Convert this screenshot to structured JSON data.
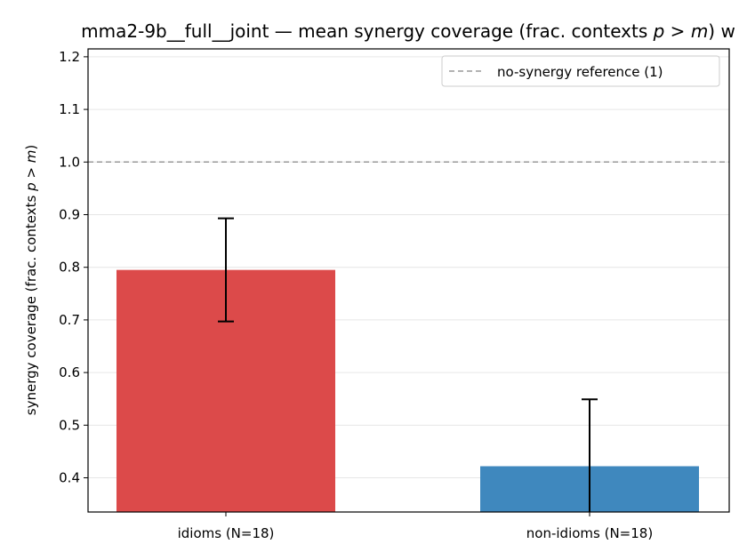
{
  "chart_data": {
    "type": "bar",
    "title": "mma2-9b__full__joint — mean synergy coverage  (frac. contexts p > m) w",
    "xlabel": "",
    "ylabel": "synergy coverage  (frac. contexts p > m)",
    "categories": [
      "idioms (N=18)",
      "non-idioms (N=18)"
    ],
    "values": [
      0.795,
      0.422
    ],
    "errors": [
      0.098,
      0.127
    ],
    "bar_colors": [
      "#dc4a4a",
      "#3f88be"
    ],
    "ylim": [
      0.335,
      1.215
    ],
    "yticks": [
      0.4,
      0.5,
      0.6,
      0.7,
      0.8,
      0.9,
      1.0,
      1.1,
      1.2
    ],
    "ytick_labels": [
      "0.4",
      "0.5",
      "0.6",
      "0.7",
      "0.8",
      "0.9",
      "1.0",
      "1.1",
      "1.2"
    ],
    "grid": "y",
    "reference_line": {
      "value": 1.0,
      "label": "no-synergy reference (1)",
      "color": "#999999"
    },
    "legend_position": "top-right"
  }
}
